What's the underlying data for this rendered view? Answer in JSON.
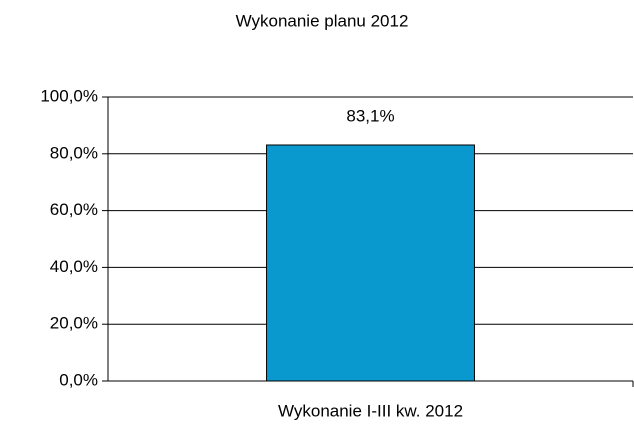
{
  "chart_data": {
    "type": "bar",
    "title": "Wykonanie planu 2012",
    "categories": [
      "Wykonanie I-III kw. 2012"
    ],
    "values": [
      83.1
    ],
    "value_labels": [
      "83,1%"
    ],
    "color": "#0a99cf",
    "ylim": [
      0,
      100
    ],
    "yticks": [
      {
        "value": 0,
        "label": "0,0%"
      },
      {
        "value": 20,
        "label": "20,0%"
      },
      {
        "value": 40,
        "label": "40,0%"
      },
      {
        "value": 60,
        "label": "60,0%"
      },
      {
        "value": 80,
        "label": "80,0%"
      },
      {
        "value": 100,
        "label": "100,0%"
      }
    ],
    "grid": true
  }
}
